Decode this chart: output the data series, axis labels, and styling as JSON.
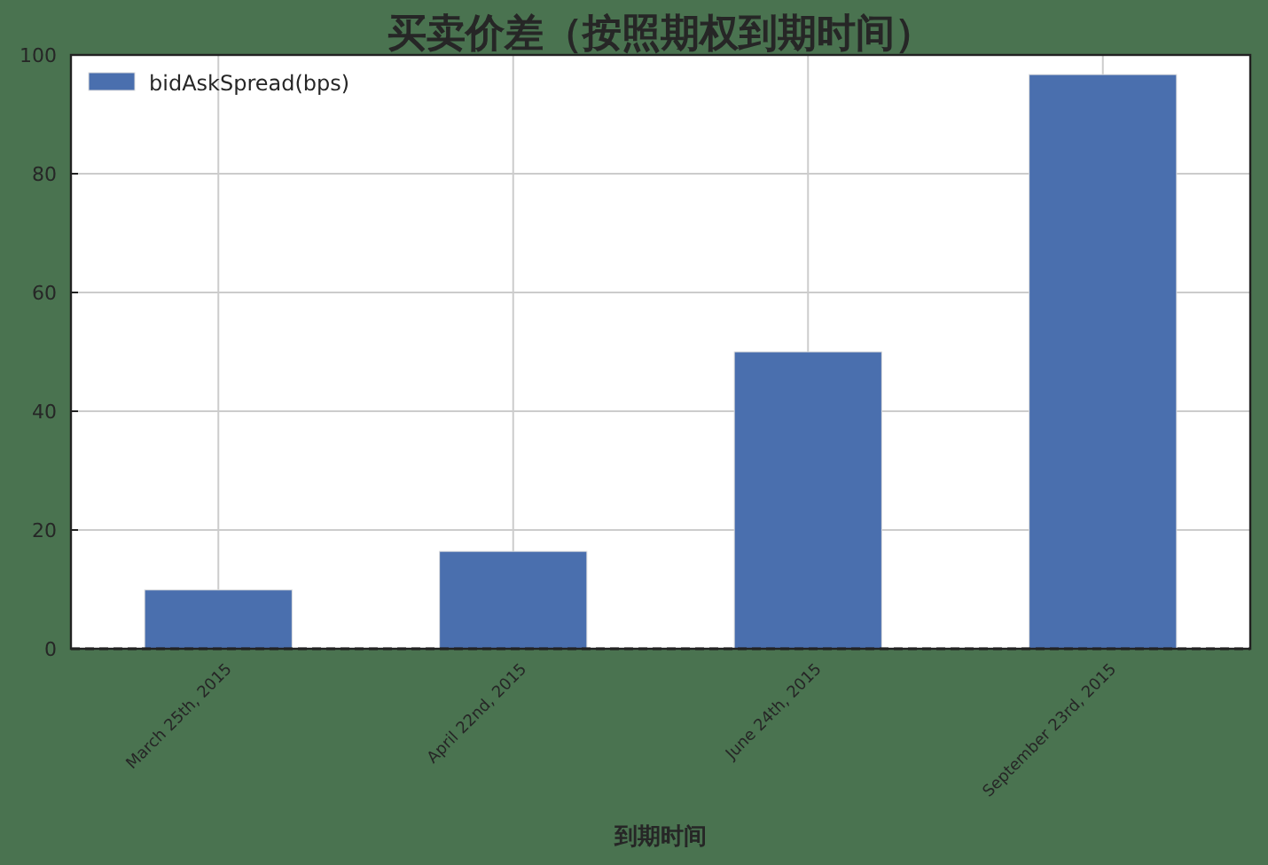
{
  "chart_data": {
    "type": "bar",
    "title": "买卖价差（按照期权到期时间）",
    "xlabel": "到期时间",
    "categories": [
      "March 25th, 2015",
      "April 22nd, 2015",
      "June 24th, 2015",
      "September 23rd, 2015"
    ],
    "series": [
      {
        "name": "bidAskSpread(bps)",
        "color": "#4a6fae",
        "values": [
          9.9,
          16.4,
          50,
          96.7
        ]
      }
    ],
    "ylim": [
      0,
      100
    ],
    "yticks": [
      0,
      20,
      40,
      60,
      80,
      100
    ],
    "grid": true,
    "legend": "top left",
    "ref_lines": [
      {
        "axis": "y",
        "value": 0,
        "color": "#222222",
        "line_style": "dashed"
      }
    ]
  }
}
